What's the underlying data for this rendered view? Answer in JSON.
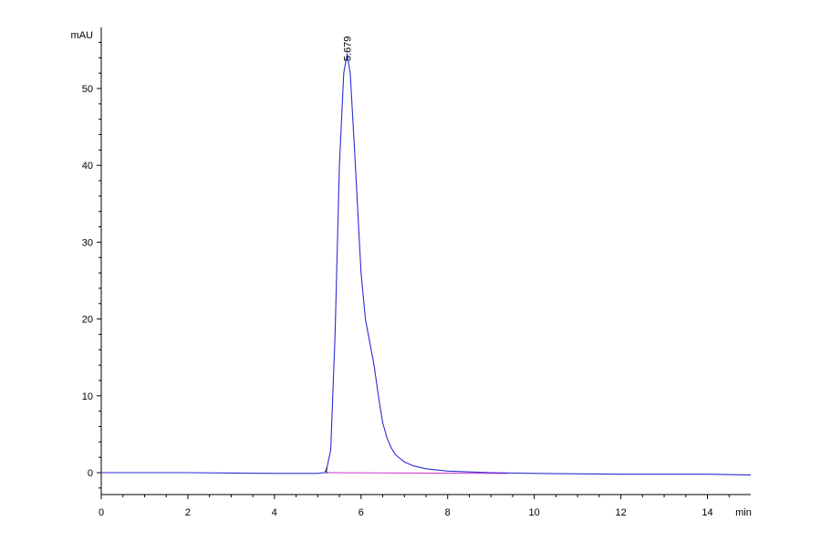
{
  "chart_data": {
    "type": "line",
    "title": "",
    "xlabel": "min",
    "ylabel": "mAU",
    "xlim": [
      0,
      15
    ],
    "ylim": [
      -3,
      58
    ],
    "x_ticks": [
      0,
      2,
      4,
      6,
      8,
      10,
      12,
      14
    ],
    "x_tick_labels": [
      "0",
      "2",
      "4",
      "6",
      "8",
      "10",
      "12",
      "14"
    ],
    "y_ticks": [
      0,
      10,
      20,
      30,
      40,
      50
    ],
    "y_tick_labels": [
      "0",
      "10",
      "20",
      "30",
      "40",
      "50"
    ],
    "grid": false,
    "legend": "none",
    "series": [
      {
        "color": "#2b2bd6",
        "x": [
          0,
          2,
          4,
          5.0,
          5.15,
          5.2,
          5.3,
          5.4,
          5.5,
          5.6,
          5.679,
          5.75,
          5.85,
          6.0,
          6.1,
          6.2,
          6.3,
          6.4,
          6.5,
          6.6,
          6.7,
          6.8,
          7.0,
          7.2,
          7.5,
          8.0,
          8.5,
          9.0,
          10.0,
          12.0,
          14.0,
          15.0
        ],
        "y": [
          0,
          0,
          -0.1,
          -0.1,
          0.0,
          0.3,
          3.0,
          18.0,
          40.0,
          52.0,
          54.5,
          52.0,
          42.0,
          26.0,
          20.0,
          17.0,
          14.0,
          10.0,
          6.5,
          4.5,
          3.2,
          2.3,
          1.4,
          0.9,
          0.5,
          0.2,
          0.1,
          0.0,
          -0.1,
          -0.2,
          -0.2,
          -0.3
        ]
      }
    ],
    "baseline": {
      "color": "#cc33cc",
      "x": [
        5.2,
        9.4
      ],
      "y": [
        0.0,
        -0.1
      ]
    },
    "annotations": [
      {
        "x": 5.679,
        "y": 54.5,
        "label": "5.679"
      }
    ]
  }
}
